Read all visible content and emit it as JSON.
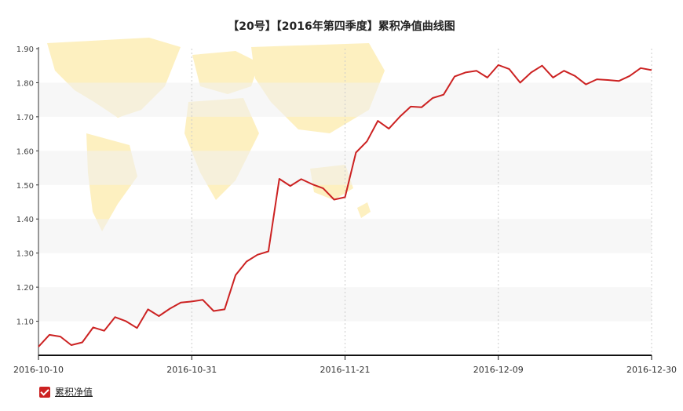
{
  "chart_data": {
    "type": "line",
    "title": "【20号】【2016年第四季度】累积净值曲线图",
    "ylim": [
      1.0,
      1.9
    ],
    "y_ticks": [
      "1.90",
      "1.80",
      "1.70",
      "1.60",
      "1.50",
      "1.40",
      "1.30",
      "1.20",
      "1.10"
    ],
    "x_ticks": [
      "2016-10-10",
      "2016-10-31",
      "2016-11-21",
      "2016-12-09",
      "2016-12-30"
    ],
    "grid": "dashed vertical + alternating horizontal bands",
    "legend_position": "bottom-left",
    "series": [
      {
        "name": "累积净值",
        "color": "#cc2222",
        "values": [
          1.025,
          1.06,
          1.055,
          1.03,
          1.038,
          1.082,
          1.072,
          1.112,
          1.1,
          1.08,
          1.135,
          1.115,
          1.137,
          1.155,
          1.158,
          1.163,
          1.13,
          1.135,
          1.235,
          1.275,
          1.295,
          1.305,
          1.518,
          1.497,
          1.517,
          1.502,
          1.49,
          1.457,
          1.464,
          1.595,
          1.628,
          1.688,
          1.665,
          1.7,
          1.73,
          1.728,
          1.755,
          1.765,
          1.818,
          1.83,
          1.835,
          1.815,
          1.852,
          1.84,
          1.8,
          1.83,
          1.85,
          1.815,
          1.835,
          1.82,
          1.795,
          1.81,
          1.808,
          1.805,
          1.82,
          1.843,
          1.837
        ]
      }
    ]
  },
  "legend": {
    "label": "累积净值",
    "checked": true
  }
}
